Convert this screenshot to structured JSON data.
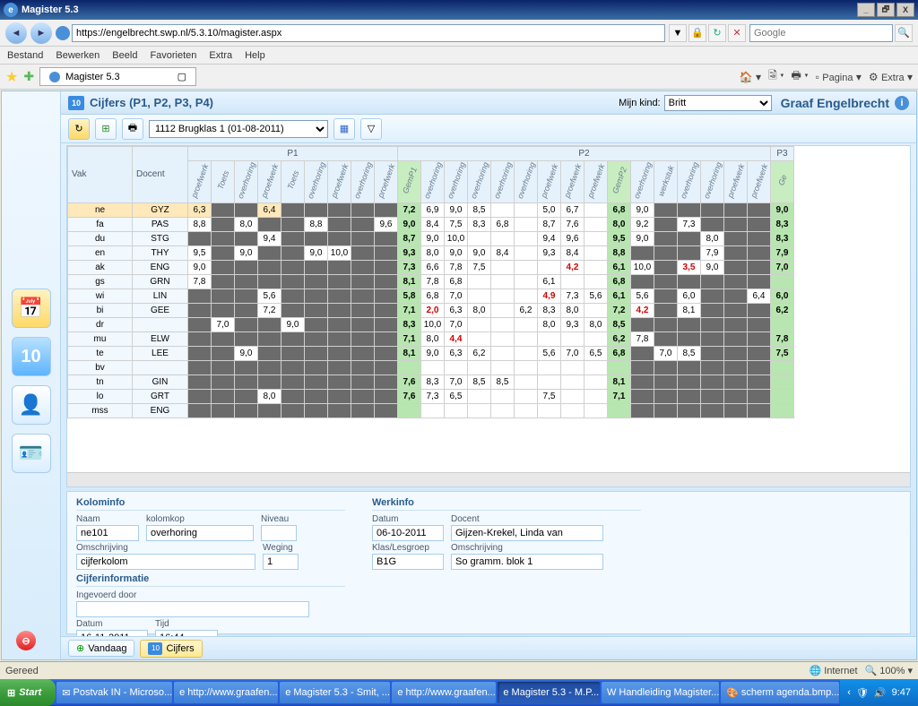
{
  "window": {
    "title": "Magister 5.3",
    "min": "_",
    "max": "🗗",
    "close": "X"
  },
  "browser": {
    "url": "https://engelbrecht.swp.nl/5.3.10/magister.aspx",
    "searchPlaceholder": "Google",
    "menus": [
      "Bestand",
      "Bewerken",
      "Beeld",
      "Favorieten",
      "Extra",
      "Help"
    ],
    "tabLabel": "Magister 5.3",
    "toolbarRight": {
      "pagina": "Pagina",
      "extra": "Extra"
    }
  },
  "app": {
    "headerTitle": "Cijfers (P1, P2, P3, P4)",
    "mijnKindLabel": "Mijn kind:",
    "mijnKindValue": "Britt",
    "schoolName": "Graaf Engelbrecht",
    "badge": "10",
    "classSelector": "1112 Brugklas 1 (01-08-2011)"
  },
  "periods": [
    "P1",
    "P2",
    "P3"
  ],
  "colHeaders": {
    "vak": "Vak",
    "docent": "Docent",
    "p1": [
      "proefwerk",
      "Toets",
      "overhoring",
      "proefwerk",
      "Toets",
      "overhoring",
      "proefwerk",
      "overhoring",
      "proefwerk"
    ],
    "gemp1": "GemP1",
    "p2": [
      "overhoring",
      "overhoring",
      "overhoring",
      "overhoring",
      "overhoring",
      "proefwerk",
      "proefwerk",
      "proefwerk"
    ],
    "gemp2": "GemP2",
    "p2b": [
      "overhoring",
      "werkstuk",
      "overhoring",
      "overhoring",
      "proefwerk",
      "proefwerk"
    ],
    "ge": "Ge"
  },
  "rows": [
    {
      "vak": "ne",
      "doc": "GYZ",
      "sel": true,
      "p1": [
        "6,3",
        "",
        "",
        "6,4",
        "",
        "",
        "",
        "",
        ""
      ],
      "g1": "7,2",
      "p2": [
        "6,9",
        "9,0",
        "8,5",
        "",
        "",
        "5,0",
        "6,7",
        ""
      ],
      "g2": "6,8",
      "p2b": [
        "9,0",
        "",
        "",
        "",
        "",
        ""
      ],
      "ge": "9,0"
    },
    {
      "vak": "fa",
      "doc": "PAS",
      "p1": [
        "8,8",
        "",
        "8,0",
        "",
        "",
        "8,8",
        "",
        "",
        "9,6"
      ],
      "g1": "9,0",
      "p2": [
        "8,4",
        "7,5",
        "8,3",
        "6,8",
        "",
        "8,7",
        "7,6",
        ""
      ],
      "g2": "8,0",
      "p2b": [
        "9,2",
        "",
        "7,3",
        "",
        "",
        ""
      ],
      "ge": "8,3"
    },
    {
      "vak": "du",
      "doc": "STG",
      "p1": [
        "",
        "",
        "",
        "9,4",
        "",
        "",
        "",
        "",
        ""
      ],
      "g1": "8,7",
      "p2": [
        "9,0",
        "10,0",
        "",
        "",
        "",
        "9,4",
        "9,6",
        ""
      ],
      "g2": "9,5",
      "p2b": [
        "9,0",
        "",
        "",
        "8,0",
        "",
        ""
      ],
      "ge": "8,3"
    },
    {
      "vak": "en",
      "doc": "THY",
      "p1": [
        "9,5",
        "",
        "9,0",
        "",
        "",
        "9,0",
        "10,0",
        "",
        ""
      ],
      "g1": "9,3",
      "p2": [
        "8,0",
        "9,0",
        "9,0",
        "8,4",
        "",
        "9,3",
        "8,4",
        ""
      ],
      "g2": "8,8",
      "p2b": [
        "",
        "",
        "",
        "7,9",
        "",
        ""
      ],
      "ge": "7,9"
    },
    {
      "vak": "ak",
      "doc": "ENG",
      "p1": [
        "9,0",
        "",
        "",
        "",
        "",
        "",
        "",
        "",
        ""
      ],
      "g1": "7,3",
      "p2": [
        "6,6",
        "7,8",
        "7,5",
        "",
        "",
        "",
        "4,2",
        ""
      ],
      "p2red": [
        6
      ],
      "g2": "6,1",
      "p2b": [
        "10,0",
        "",
        "3,5",
        "9,0",
        "",
        ""
      ],
      "p2bred": [
        2
      ],
      "ge": "7,0"
    },
    {
      "vak": "gs",
      "doc": "GRN",
      "p1": [
        "7,8",
        "",
        "",
        "",
        "",
        "",
        "",
        "",
        ""
      ],
      "g1": "8,1",
      "p2": [
        "7,8",
        "6,8",
        "",
        "",
        "",
        "6,1",
        "",
        ""
      ],
      "g2": "6,8",
      "p2b": [
        "",
        "",
        "",
        "",
        "",
        ""
      ],
      "ge": ""
    },
    {
      "vak": "wi",
      "doc": "LIN",
      "p1": [
        "",
        "",
        "",
        "5,6",
        "",
        "",
        "",
        "",
        ""
      ],
      "g1": "5,8",
      "p2": [
        "6,8",
        "7,0",
        "",
        "",
        "",
        "4,9",
        "7,3",
        "5,6"
      ],
      "p2red": [
        5
      ],
      "g2": "6,1",
      "p2b": [
        "5,6",
        "",
        "6,0",
        "",
        "",
        "6,4"
      ],
      "ge": "6,0"
    },
    {
      "vak": "bi",
      "doc": "GEE",
      "p1": [
        "",
        "",
        "",
        "7,2",
        "",
        "",
        "",
        "",
        ""
      ],
      "g1": "7,1",
      "p2": [
        "2,0",
        "6,3",
        "8,0",
        "",
        "6,2",
        "8,3",
        "8,0",
        ""
      ],
      "p2red": [
        0
      ],
      "g2": "7,2",
      "p2b": [
        "4,2",
        "",
        "8,1",
        "",
        "",
        ""
      ],
      "p2bred": [
        0
      ],
      "ge": "6,2"
    },
    {
      "vak": "dr",
      "doc": "",
      "p1": [
        "",
        "7,0",
        "",
        "",
        "9,0",
        "",
        "",
        "",
        ""
      ],
      "g1": "8,3",
      "p2": [
        "10,0",
        "7,0",
        "",
        "",
        "",
        "8,0",
        "9,3",
        "8,0"
      ],
      "g2": "8,5",
      "p2b": [
        "",
        "",
        "",
        "",
        "",
        ""
      ],
      "ge": ""
    },
    {
      "vak": "mu",
      "doc": "ELW",
      "p1": [
        "",
        "",
        "",
        "",
        "",
        "",
        "",
        "",
        ""
      ],
      "g1": "7,1",
      "p2": [
        "8,0",
        "4,4",
        "",
        "",
        "",
        "",
        "",
        ""
      ],
      "p2red": [
        1
      ],
      "g2": "6,2",
      "p2b": [
        "7,8",
        "",
        "",
        "",
        "",
        ""
      ],
      "ge": "7,8"
    },
    {
      "vak": "te",
      "doc": "LEE",
      "p1": [
        "",
        "",
        "9,0",
        "",
        "",
        "",
        "",
        "",
        ""
      ],
      "g1": "8,1",
      "p2": [
        "9,0",
        "6,3",
        "6,2",
        "",
        "",
        "5,6",
        "7,0",
        "6,5"
      ],
      "g2": "6,8",
      "p2b": [
        "",
        "7,0",
        "8,5",
        "",
        "",
        ""
      ],
      "ge": "7,5"
    },
    {
      "vak": "bv",
      "doc": "",
      "p1": [
        "",
        "",
        "",
        "",
        "",
        "",
        "",
        "",
        ""
      ],
      "g1": "",
      "p2": [
        "",
        "",
        "",
        "",
        "",
        "",
        "",
        ""
      ],
      "g2": "",
      "p2b": [
        "",
        "",
        "",
        "",
        "",
        ""
      ],
      "ge": ""
    },
    {
      "vak": "tn",
      "doc": "GIN",
      "p1": [
        "",
        "",
        "",
        "",
        "",
        "",
        "",
        "",
        ""
      ],
      "g1": "7,6",
      "p2": [
        "8,3",
        "7,0",
        "8,5",
        "8,5",
        "",
        "",
        "",
        ""
      ],
      "g2": "8,1",
      "p2b": [
        "",
        "",
        "",
        "",
        "",
        ""
      ],
      "ge": ""
    },
    {
      "vak": "lo",
      "doc": "GRT",
      "p1": [
        "",
        "",
        "",
        "8,0",
        "",
        "",
        "",
        "",
        ""
      ],
      "g1": "7,6",
      "p2": [
        "7,3",
        "6,5",
        "",
        "",
        "",
        "7,5",
        "",
        ""
      ],
      "g2": "7,1",
      "p2b": [
        "",
        "",
        "",
        "",
        "",
        ""
      ],
      "ge": ""
    },
    {
      "vak": "mss",
      "doc": "ENG",
      "p1": [
        "",
        "",
        "",
        "",
        "",
        "",
        "",
        "",
        ""
      ],
      "g1": "",
      "p2": [
        "",
        "",
        "",
        "",
        "",
        "",
        "",
        ""
      ],
      "g2": "",
      "p2b": [
        "",
        "",
        "",
        "",
        "",
        ""
      ],
      "ge": ""
    }
  ],
  "kolominfo": {
    "legend": "Kolominfo",
    "naamLabel": "Naam",
    "naam": "ne101",
    "kolomkopLabel": "kolomkop",
    "kolomkop": "overhoring",
    "niveauLabel": "Niveau",
    "niveau": "",
    "omschrijvingLabel": "Omschrijving",
    "omschrijving": "cijferkolom",
    "wegingLabel": "Weging",
    "weging": "1",
    "cijferLegend": "Cijferinformatie",
    "ingevoerdLabel": "Ingevoerd door",
    "ingevoerd": "",
    "datumLabel": "Datum",
    "datum": "16-11-2011",
    "tijdLabel": "Tijd",
    "tijd": "16:44"
  },
  "werkinfo": {
    "legend": "Werkinfo",
    "datumLabel": "Datum",
    "datum": "06-10-2011",
    "docentLabel": "Docent",
    "docent": "Gijzen-Krekel, Linda van",
    "klasLabel": "Klas/Lesgroep",
    "klas": "B1G",
    "omschrijvingLabel": "Omschrijving",
    "omschrijving": "So gramm. blok 1"
  },
  "bottomTabs": {
    "vandaag": "Vandaag",
    "cijfers": "Cijfers"
  },
  "statusbar": {
    "left": "Gereed",
    "zone": "Internet",
    "zoom": "100%"
  },
  "taskbar": {
    "start": "Start",
    "tasks": [
      {
        "label": "Postvak IN - Microso...",
        "ico": "✉"
      },
      {
        "label": "http://www.graafen...",
        "ico": "e"
      },
      {
        "label": "Magister 5.3 - Smit, ...",
        "ico": "e"
      },
      {
        "label": "http://www.graafen...",
        "ico": "e"
      },
      {
        "label": "Magister 5.3 - M.P...",
        "ico": "e",
        "active": true
      },
      {
        "label": "Handleiding Magister...",
        "ico": "W"
      },
      {
        "label": "scherm agenda.bmp...",
        "ico": "🎨"
      }
    ],
    "clock": "9:47"
  }
}
